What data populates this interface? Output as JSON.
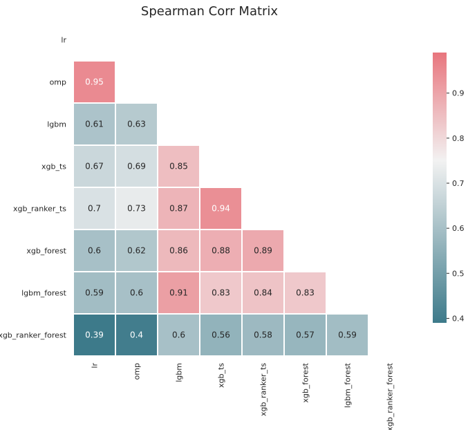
{
  "chart_data": {
    "type": "heatmap",
    "title": "Spearman Corr Matrix",
    "row_labels": [
      "lr",
      "omp",
      "lgbm",
      "xgb_ts",
      "xgb_ranker_ts",
      "xgb_forest",
      "lgbm_forest",
      "xgb_ranker_forest"
    ],
    "col_labels": [
      "lr",
      "omp",
      "lgbm",
      "xgb_ts",
      "xgb_ranker_ts",
      "xgb_forest",
      "lgbm_forest",
      "xgb_ranker_forest"
    ],
    "mask": "upper triangle incl. diagonal",
    "values": [
      [
        null,
        null,
        null,
        null,
        null,
        null,
        null,
        null
      ],
      [
        0.95,
        null,
        null,
        null,
        null,
        null,
        null,
        null
      ],
      [
        0.61,
        0.63,
        null,
        null,
        null,
        null,
        null,
        null
      ],
      [
        0.67,
        0.69,
        0.85,
        null,
        null,
        null,
        null,
        null
      ],
      [
        0.7,
        0.73,
        0.87,
        0.94,
        null,
        null,
        null,
        null
      ],
      [
        0.6,
        0.62,
        0.86,
        0.88,
        0.89,
        null,
        null,
        null
      ],
      [
        0.59,
        0.6,
        0.91,
        0.83,
        0.84,
        0.83,
        null,
        null
      ],
      [
        0.39,
        0.4,
        0.6,
        0.56,
        0.58,
        0.57,
        0.59,
        null
      ]
    ],
    "colorbar": {
      "vmin": 0.39,
      "vmax": 0.99,
      "center": 0.75,
      "ticks": [
        0.4,
        0.5,
        0.6,
        0.7,
        0.8,
        0.9
      ],
      "colors": {
        "low": "#3d7a8a",
        "mid": "#f2f2f2",
        "high": "#e8757d"
      }
    },
    "grid": false
  }
}
